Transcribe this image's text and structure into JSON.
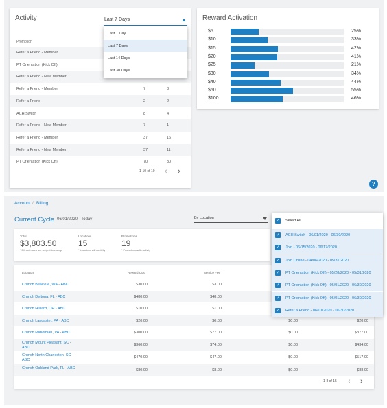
{
  "activity": {
    "title": "Activity",
    "period_selected": "Last 7 Days",
    "period_options": [
      "Last 1 Day",
      "Last 7 Days",
      "Last 14 Days",
      "Last 30 Days"
    ],
    "column_header": "Promotion",
    "rows": [
      {
        "promotion": "Refer a Friend - Member",
        "c2": "",
        "c3": ""
      },
      {
        "promotion": "PT Orientation (Kick Off)",
        "c2": "",
        "c3": ""
      },
      {
        "promotion": "Refer a Friend - New Member",
        "c2": "",
        "c3": ""
      },
      {
        "promotion": "Refer a Friend - Member",
        "c2": "7",
        "c3": "3"
      },
      {
        "promotion": "Refer a Friend",
        "c2": "2",
        "c3": "2"
      },
      {
        "promotion": "ACH Switch",
        "c2": "8",
        "c3": "4"
      },
      {
        "promotion": "Refer a Friend - New Member",
        "c2": "7",
        "c3": "1"
      },
      {
        "promotion": "Refer a Friend - Member",
        "c2": "37",
        "c3": "16"
      },
      {
        "promotion": "Refer a Friend - New Member",
        "c2": "37",
        "c3": "11"
      },
      {
        "promotion": "PT Orientation (Kick Off)",
        "c2": "70",
        "c3": "30"
      }
    ],
    "pager": "1-10 of 10"
  },
  "reward_activation": {
    "title": "Reward Activation",
    "rows": [
      {
        "label": "$5",
        "percent": 25,
        "percent_text": "25%"
      },
      {
        "label": "$10",
        "percent": 33,
        "percent_text": "33%"
      },
      {
        "label": "$15",
        "percent": 42,
        "percent_text": "42%"
      },
      {
        "label": "$20",
        "percent": 41,
        "percent_text": "41%"
      },
      {
        "label": "$25",
        "percent": 21,
        "percent_text": "21%"
      },
      {
        "label": "$30",
        "percent": 34,
        "percent_text": "34%"
      },
      {
        "label": "$40",
        "percent": 44,
        "percent_text": "44%"
      },
      {
        "label": "$50",
        "percent": 55,
        "percent_text": "55%"
      },
      {
        "label": "$100",
        "percent": 46,
        "percent_text": "46%"
      }
    ]
  },
  "help_label": "?",
  "breadcrumb": {
    "account": "Account",
    "separator": "/",
    "billing": "Billing"
  },
  "cycle": {
    "title": "Current Cycle",
    "range": "06/01/2020 - Today",
    "group_by": "By Location"
  },
  "summary": {
    "total_label": "Total",
    "total_value": "$3,803.50",
    "total_note": "* Bill estimates are subject to change",
    "locations_label": "Locations",
    "locations_value": "15",
    "locations_note": "* Locations with activity",
    "promotions_label": "Promotions",
    "promotions_value": "19",
    "promotions_note": "* Promotions with activity"
  },
  "location_table": {
    "headers": {
      "location": "Location",
      "reward_cost": "Reward Cost",
      "service_fee": "Service Fee"
    },
    "rows": [
      {
        "location": "Crunch Bellevue, WA - ABC",
        "reward_cost": "$30.00",
        "service_fee": "$3.00",
        "col3": "",
        "col4": ""
      },
      {
        "location": "Crunch Deltona, FL - ABC",
        "reward_cost": "$480.00",
        "service_fee": "$48.00",
        "col3": "",
        "col4": ""
      },
      {
        "location": "Crunch Hilliard, OH - ABC",
        "reward_cost": "$10.00",
        "service_fee": "$1.00",
        "col3": "",
        "col4": ""
      },
      {
        "location": "Crunch Lancaster, PA - ABC",
        "reward_cost": "$20.00",
        "service_fee": "$0.00",
        "col3": "$0.00",
        "col4": "$20.00"
      },
      {
        "location": "Crunch Midlothian, VA - ABC",
        "reward_cost": "$300.00",
        "service_fee": "$77.00",
        "col3": "$0.00",
        "col4": "$377.00"
      },
      {
        "location": "Crunch Mount Pleasant, SC - ABC",
        "reward_cost": "$360.00",
        "service_fee": "$74.00",
        "col3": "$0.00",
        "col4": "$434.00"
      },
      {
        "location": "Crunch North Charleston, SC - ABC",
        "reward_cost": "$470.00",
        "service_fee": "$47.00",
        "col3": "$0.00",
        "col4": "$517.00"
      },
      {
        "location": "Crunch Oakland Park, FL - ABC",
        "reward_cost": "$80.00",
        "service_fee": "$8.00",
        "col3": "$0.00",
        "col4": "$88.00"
      }
    ],
    "pager": "1-8 of 15"
  },
  "promo_filter": {
    "select_all": "Select All",
    "options": [
      "ACH Switch - 06/01/2020 - 06/30/2020",
      "Join - 06/15/2020 - 06/17/2020",
      "Join Online - 04/06/2020 - 05/31/2020",
      "PT Orientation (Kick Off) - 05/28/2020 - 05/31/2020",
      "PT Orientation (Kick Off) - 06/01/2020 - 06/30/2020",
      "PT Orientation (Kick Off) - 06/01/2020 - 06/30/2020",
      "Refer a Friend - 06/01/2020 - 06/30/2020"
    ]
  },
  "colors": {
    "accent": "#1e7fc2",
    "highlight": "#e3eef8",
    "row_alt": "#f3f4f6"
  }
}
